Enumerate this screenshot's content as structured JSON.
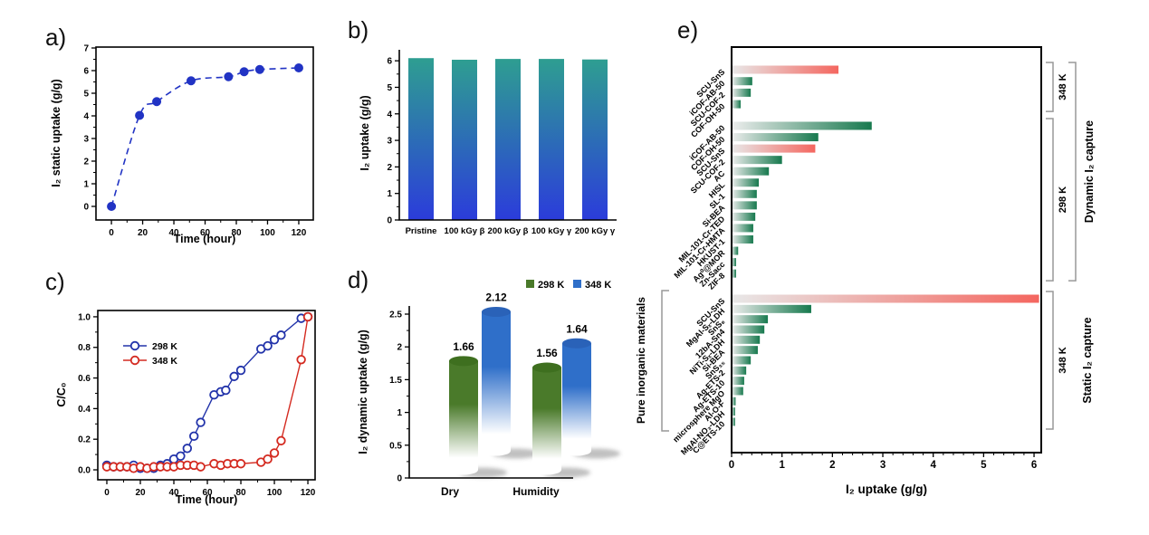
{
  "figure": {
    "panel_labels": {
      "a": "a)",
      "b": "b)",
      "c": "c)",
      "d": "d)",
      "e": "e)"
    }
  },
  "chart_data": [
    {
      "id": "a",
      "type": "scatter",
      "xlabel": "Time (hour)",
      "ylabel": "I₂ static uptake (g/g)",
      "xlim": [
        0,
        120
      ],
      "ylim": [
        0,
        7
      ],
      "xticks": [
        0,
        20,
        40,
        60,
        80,
        100,
        120
      ],
      "yticks": [
        0,
        1,
        2,
        3,
        4,
        5,
        6,
        7
      ],
      "series": [
        {
          "name": "I₂ static uptake",
          "color": "#2133c4",
          "line": "dashed",
          "marker": "filled-circle",
          "points": [
            [
              0,
              0
            ],
            [
              18,
              4.02
            ],
            [
              29,
              4.63
            ],
            [
              51,
              5.55
            ],
            [
              75,
              5.73
            ],
            [
              85,
              5.95
            ],
            [
              95,
              6.05
            ],
            [
              120,
              6.12
            ]
          ]
        }
      ]
    },
    {
      "id": "b",
      "type": "bar",
      "ylabel": "I₂ uptake (g/g)",
      "ylim": [
        0,
        6.5
      ],
      "yticks": [
        0,
        1,
        2,
        3,
        4,
        5,
        6
      ],
      "categories": [
        "Pristine",
        "100 kGy β",
        "200 kGy β",
        "100 kGy γ",
        "200 kGy γ"
      ],
      "values": [
        6.1,
        6.04,
        6.07,
        6.07,
        6.05
      ],
      "bar_gradient": [
        "#2e9e91",
        "#2b3cdb"
      ]
    },
    {
      "id": "c",
      "type": "line",
      "xlabel": "Time (hour)",
      "ylabel": "C/C₀",
      "xlim": [
        0,
        120
      ],
      "ylim": [
        0,
        1.0
      ],
      "xticks": [
        0,
        20,
        40,
        60,
        80,
        100,
        120
      ],
      "yticks": [
        0.0,
        0.2,
        0.4,
        0.6,
        0.8,
        1.0
      ],
      "legend_position": "upper-left",
      "series": [
        {
          "name": "298 K",
          "color": "#2233aa",
          "marker": "open-circle",
          "points": [
            [
              0,
              0.03
            ],
            [
              4,
              0.02
            ],
            [
              8,
              0.02
            ],
            [
              12,
              0.02
            ],
            [
              16,
              0.03
            ],
            [
              20,
              0.01
            ],
            [
              24,
              0.01
            ],
            [
              28,
              0.01
            ],
            [
              32,
              0.03
            ],
            [
              36,
              0.04
            ],
            [
              40,
              0.07
            ],
            [
              44,
              0.09
            ],
            [
              48,
              0.14
            ],
            [
              52,
              0.22
            ],
            [
              56,
              0.31
            ],
            [
              64,
              0.49
            ],
            [
              68,
              0.51
            ],
            [
              71,
              0.52
            ],
            [
              76,
              0.61
            ],
            [
              80,
              0.65
            ],
            [
              92,
              0.79
            ],
            [
              96,
              0.81
            ],
            [
              100,
              0.85
            ],
            [
              104,
              0.88
            ],
            [
              116,
              0.99
            ],
            [
              120,
              1.0
            ]
          ]
        },
        {
          "name": "348 K",
          "color": "#d42a20",
          "marker": "open-circle",
          "points": [
            [
              0,
              0.02
            ],
            [
              4,
              0.02
            ],
            [
              8,
              0.02
            ],
            [
              12,
              0.02
            ],
            [
              16,
              0.01
            ],
            [
              20,
              0.02
            ],
            [
              24,
              0.01
            ],
            [
              28,
              0.02
            ],
            [
              32,
              0.02
            ],
            [
              36,
              0.02
            ],
            [
              40,
              0.02
            ],
            [
              44,
              0.03
            ],
            [
              48,
              0.03
            ],
            [
              52,
              0.03
            ],
            [
              56,
              0.02
            ],
            [
              64,
              0.04
            ],
            [
              68,
              0.03
            ],
            [
              72,
              0.04
            ],
            [
              76,
              0.04
            ],
            [
              80,
              0.04
            ],
            [
              92,
              0.05
            ],
            [
              96,
              0.07
            ],
            [
              100,
              0.11
            ],
            [
              104,
              0.19
            ],
            [
              116,
              0.72
            ],
            [
              120,
              1.0
            ]
          ]
        }
      ]
    },
    {
      "id": "d",
      "type": "bar",
      "style": "3d-cylinder",
      "ylabel": "I₂ dynamic uptake (g/g)",
      "ylim": [
        0,
        2.5
      ],
      "yticks": [
        0,
        0.5,
        1,
        1.5,
        2,
        2.5
      ],
      "categories": [
        "Dry",
        "Humidity"
      ],
      "series": [
        {
          "name": "298 K",
          "color": "#4a7a2a",
          "top_color": "#3e6f1f",
          "values": [
            1.66,
            1.56
          ]
        },
        {
          "name": "348 K",
          "color": "#2f6fc9",
          "top_color": "#2a62b8",
          "values": [
            2.12,
            1.64
          ]
        }
      ],
      "value_labels": [
        "1.66",
        "2.12",
        "1.56",
        "1.64"
      ],
      "value_label_color": "#3465c8",
      "legend_position": "upper-right"
    },
    {
      "id": "e",
      "type": "bar-horizontal",
      "xlabel": "I₂ uptake (g/g)",
      "xlim": [
        0,
        6.2
      ],
      "xticks": [
        0,
        1,
        2,
        3,
        4,
        5,
        6
      ],
      "highlight_color": "#c81414",
      "bar_gradient_green": [
        "#ededed",
        "#17794e"
      ],
      "bar_gradient_red": [
        "#e8e8e8",
        "#f4665f"
      ],
      "groups": [
        {
          "bracket_label": "348 K",
          "label_color": "#c81414",
          "mode": "dynamic",
          "bars": [
            {
              "label": "SCU-SnS",
              "value": 2.12,
              "highlight": true
            },
            {
              "label": "iCOF-AB-50",
              "value": 0.41
            },
            {
              "label": "SCU-COF-2",
              "value": 0.38
            },
            {
              "label": "COF-OH-50",
              "value": 0.18
            }
          ]
        },
        {
          "bracket_label": "298 K",
          "label_color": "#c81414",
          "mode": "dynamic",
          "bars": [
            {
              "label": "iCOF-AB-50",
              "value": 2.78
            },
            {
              "label": "COF-OH-50",
              "value": 1.72
            },
            {
              "label": "SCU-SnS",
              "value": 1.66,
              "highlight": true
            },
            {
              "label": "SCU-COF-2",
              "value": 1.0
            },
            {
              "label": "AC",
              "value": 0.74
            },
            {
              "label": "HISL",
              "value": 0.54
            },
            {
              "label": "SL-1",
              "value": 0.5
            },
            {
              "label": "Si-BEA",
              "value": 0.5
            },
            {
              "label": "MIL-101-Cr-TED",
              "value": 0.47
            },
            {
              "label": "MIL-101-Cr-HMTA",
              "value": 0.43
            },
            {
              "label": "HKUST-1",
              "value": 0.43
            },
            {
              "label": "Ag⁰@MOR",
              "value": 0.13
            },
            {
              "label": "Zn-Sacc",
              "value": 0.09
            },
            {
              "label": "ZIF-8",
              "value": 0.09
            }
          ]
        },
        {
          "bracket_label": "348 K",
          "label_color": "#3569d6",
          "mode": "static",
          "bars": [
            {
              "label": "SCU-SnS",
              "value": 6.1,
              "highlight": true
            },
            {
              "label": "MgAl-Sₓ-LDH",
              "value": 1.58
            },
            {
              "label": "SnS₈",
              "value": 0.72
            },
            {
              "label": "12bA-Sn4",
              "value": 0.65
            },
            {
              "label": "NiTi-Sₓ-LDH",
              "value": 0.56
            },
            {
              "label": "Si-BEA",
              "value": 0.52
            },
            {
              "label": "SnS₃₅",
              "value": 0.38
            },
            {
              "label": "Ag-ETS-2",
              "value": 0.29
            },
            {
              "label": "Ag-ETS-10",
              "value": 0.25
            },
            {
              "label": "microsphere MgO",
              "value": 0.23
            },
            {
              "label": "Al-O-F",
              "value": 0.08
            },
            {
              "label": "MgAl-NO₃-LDH",
              "value": 0.07
            },
            {
              "label": "C@ETS-10",
              "value": 0.07
            }
          ]
        }
      ],
      "side_captions": [
        {
          "text": "Dynamic I₂ capture",
          "color": "#c81414",
          "spans": "dynamic"
        },
        {
          "text": "Static I₂ capture",
          "color": "#3569d6",
          "spans": "static"
        }
      ],
      "left_caption": {
        "text": "Pure inorganic materials",
        "color": "#219621"
      }
    }
  ]
}
